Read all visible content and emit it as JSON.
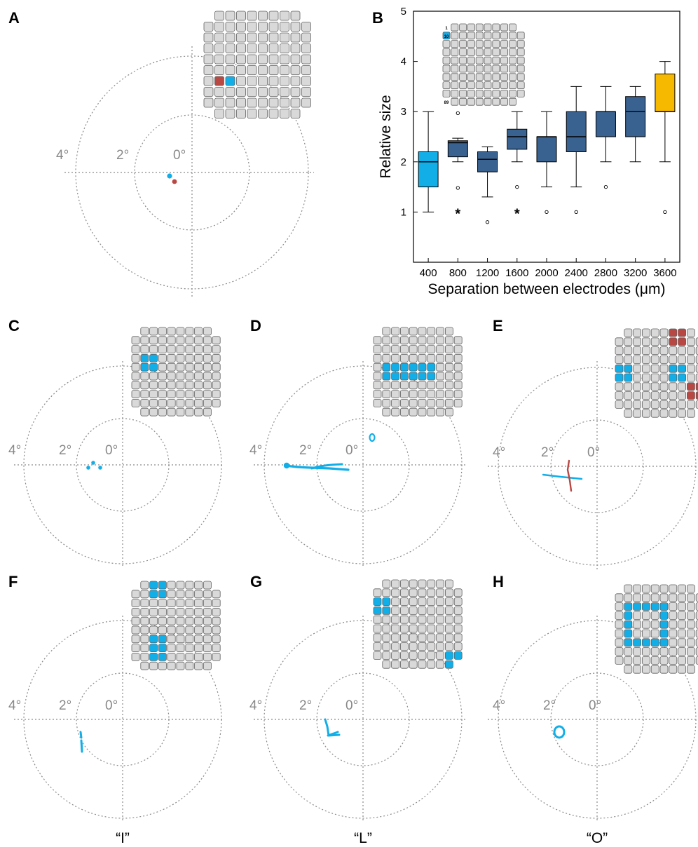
{
  "colors": {
    "electrode_fill": "#d9d9d9",
    "electrode_stroke": "#606060",
    "cyan": "#12aee8",
    "red": "#b84844",
    "navy": "#3a6290",
    "gold": "#f7b800",
    "grid_line": "#8a8a8a"
  },
  "panels": [
    {
      "id": "A",
      "label": "A",
      "degree_labels": [
        "4°",
        "2°",
        "0°"
      ],
      "caption": ""
    },
    {
      "id": "B",
      "label": "B"
    },
    {
      "id": "C",
      "label": "C",
      "degree_labels": [
        "4°",
        "2°",
        "0°"
      ],
      "caption": ""
    },
    {
      "id": "D",
      "label": "D",
      "degree_labels": [
        "4°",
        "2°",
        "0°"
      ],
      "caption": ""
    },
    {
      "id": "E",
      "label": "E",
      "degree_labels": [
        "4°",
        "2°",
        "0°"
      ],
      "caption": ""
    },
    {
      "id": "F",
      "label": "F",
      "degree_labels": [
        "4°",
        "2°",
        "0°"
      ],
      "caption": "“I”"
    },
    {
      "id": "G",
      "label": "G",
      "degree_labels": [
        "4°",
        "2°",
        "0°"
      ],
      "caption": "“L”"
    },
    {
      "id": "H",
      "label": "H",
      "degree_labels": [
        "4°",
        "2°",
        "0°"
      ],
      "caption": "“O”"
    }
  ],
  "chart_data": {
    "type": "box",
    "xlabel": "Separation between electrodes (μm)",
    "ylabel": "Relative size",
    "ylim": [
      0,
      5
    ],
    "yticks": [
      1,
      2,
      3,
      4,
      5
    ],
    "categories": [
      "400",
      "800",
      "1200",
      "1600",
      "2000",
      "2400",
      "2800",
      "3200",
      "3600"
    ],
    "boxes": [
      {
        "category": "400",
        "min": 1.0,
        "q1": 1.5,
        "median": 2.0,
        "q3": 2.2,
        "max": 3.0,
        "outliers": [],
        "significant": false,
        "color": "cyan"
      },
      {
        "category": "800",
        "min": 2.0,
        "q1": 2.1,
        "median": 2.38,
        "q3": 2.42,
        "max": 2.47,
        "outliers": [
          1.48,
          2.97
        ],
        "significant": true,
        "color": "navy"
      },
      {
        "category": "1200",
        "min": 1.3,
        "q1": 1.8,
        "median": 2.05,
        "q3": 2.2,
        "max": 2.3,
        "outliers": [
          0.8
        ],
        "significant": false,
        "color": "navy"
      },
      {
        "category": "1600",
        "min": 2.0,
        "q1": 2.25,
        "median": 2.5,
        "q3": 2.65,
        "max": 3.0,
        "outliers": [
          1.5
        ],
        "significant": true,
        "color": "navy"
      },
      {
        "category": "2000",
        "min": 1.5,
        "q1": 2.0,
        "median": 2.5,
        "q3": 2.5,
        "max": 3.0,
        "outliers": [
          1.0
        ],
        "significant": false,
        "color": "navy"
      },
      {
        "category": "2400",
        "min": 1.5,
        "q1": 2.2,
        "median": 2.5,
        "q3": 3.0,
        "max": 3.5,
        "outliers": [
          1.0
        ],
        "significant": false,
        "color": "navy"
      },
      {
        "category": "2800",
        "min": 2.0,
        "q1": 2.5,
        "median": 3.0,
        "q3": 3.0,
        "max": 3.5,
        "outliers": [
          1.5
        ],
        "significant": false,
        "color": "navy"
      },
      {
        "category": "3200",
        "min": 2.0,
        "q1": 2.5,
        "median": 3.0,
        "q3": 3.3,
        "max": 3.5,
        "outliers": [],
        "significant": false,
        "color": "navy"
      },
      {
        "category": "3600",
        "min": 2.0,
        "q1": 3.0,
        "median": 3.0,
        "q3": 3.75,
        "max": 4.0,
        "outliers": [
          1.0
        ],
        "significant": false,
        "color": "gold"
      }
    ],
    "significance_marker": "*",
    "inset_grid_labels": [
      "1",
      "10",
      "89"
    ]
  }
}
